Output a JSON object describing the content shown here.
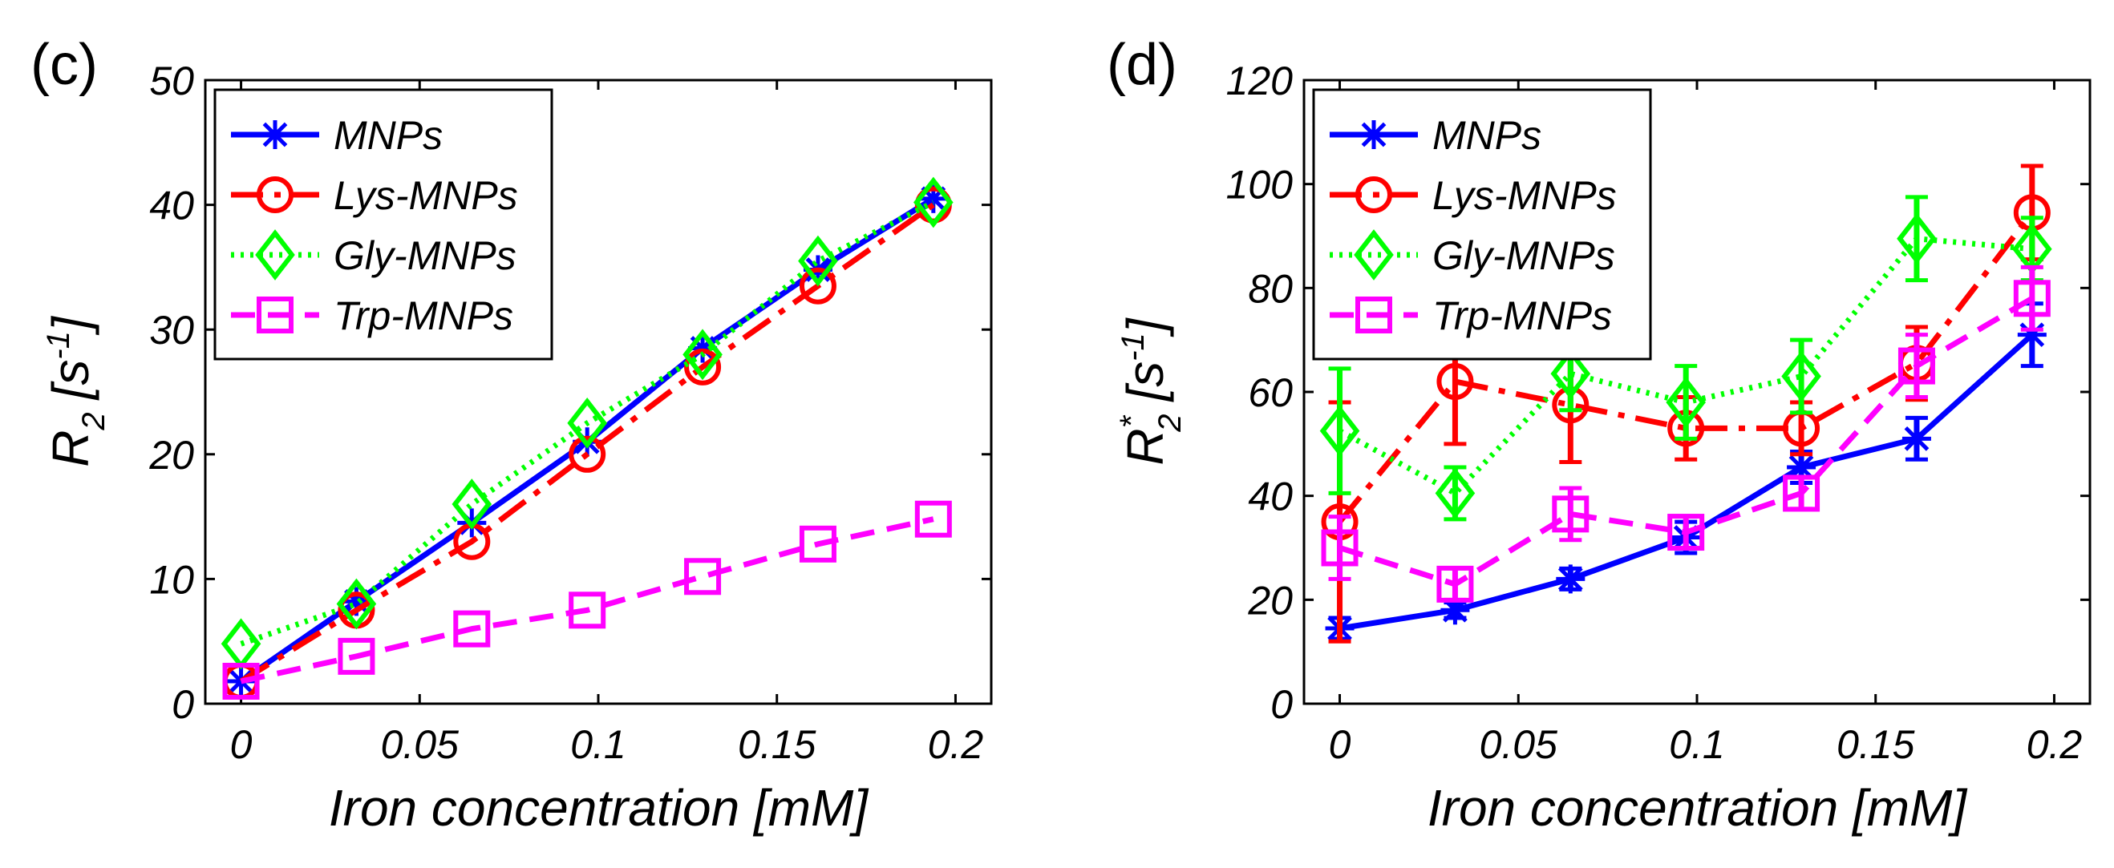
{
  "chart_data": [
    {
      "type": "line",
      "panel_label": "(c)",
      "title": "",
      "xlabel": "Iron concentration [mM]",
      "ylabel_main": "R",
      "ylabel_sub": "2",
      "ylabel_unit": "[s",
      "ylabel_exp": "-1",
      "ylabel_close": "]",
      "xlim": [
        -0.01,
        0.21
      ],
      "ylim": [
        0,
        50
      ],
      "x_ticks": [
        0,
        0.05,
        0.1,
        0.15,
        0.2
      ],
      "x_tick_labels": [
        "0",
        "0.05",
        "0.1",
        "0.15",
        "0.2"
      ],
      "y_ticks": [
        0,
        10,
        20,
        30,
        40,
        50
      ],
      "y_tick_labels": [
        "0",
        "10",
        "20",
        "30",
        "40",
        "50"
      ],
      "legend_position": "top-left",
      "x": [
        0,
        0.0323,
        0.0646,
        0.0969,
        0.1292,
        0.1615,
        0.1938
      ],
      "series": [
        {
          "name": "MNPs",
          "color": "#0000ff",
          "dash": "",
          "marker": "asterisk",
          "values": [
            1.8,
            8.2,
            14.5,
            21.0,
            28.5,
            34.8,
            40.5
          ],
          "errors": [
            0,
            0,
            0,
            0,
            0,
            0,
            0
          ]
        },
        {
          "name": "Lys-MNPs",
          "color": "#ff0000",
          "dash": "40 14 8 14",
          "marker": "circle",
          "values": [
            1.8,
            7.5,
            13.0,
            20.0,
            27.0,
            33.5,
            40.0
          ],
          "errors": [
            0,
            0,
            0,
            0,
            0,
            0,
            0
          ]
        },
        {
          "name": "Gly-MNPs",
          "color": "#00ff00",
          "dash": "4 8",
          "marker": "diamond",
          "values": [
            4.8,
            8.0,
            16.0,
            22.5,
            28.0,
            35.5,
            40.2
          ],
          "errors": [
            0,
            0,
            0,
            0,
            0,
            0,
            0
          ]
        },
        {
          "name": "Trp-MNPs",
          "color": "#ff00ff",
          "dash": "30 16",
          "marker": "square",
          "values": [
            1.8,
            3.8,
            6.0,
            7.5,
            10.2,
            12.8,
            14.8
          ],
          "errors": [
            0,
            0,
            0,
            0,
            0,
            0,
            0
          ]
        }
      ]
    },
    {
      "type": "line",
      "panel_label": "(d)",
      "title": "",
      "xlabel": "Iron concentration [mM]",
      "ylabel_main": "R",
      "ylabel_sub": "2",
      "ylabel_sup": "*",
      "ylabel_unit": "[s",
      "ylabel_exp": "-1",
      "ylabel_close": "]",
      "xlim": [
        -0.01,
        0.21
      ],
      "ylim": [
        0,
        120
      ],
      "x_ticks": [
        0,
        0.05,
        0.1,
        0.15,
        0.2
      ],
      "x_tick_labels": [
        "0",
        "0.05",
        "0.1",
        "0.15",
        "0.2"
      ],
      "y_ticks": [
        0,
        20,
        40,
        60,
        80,
        100,
        120
      ],
      "y_tick_labels": [
        "0",
        "20",
        "40",
        "60",
        "80",
        "100",
        "120"
      ],
      "legend_position": "top-left",
      "x": [
        0,
        0.0323,
        0.0646,
        0.0969,
        0.1292,
        0.1615,
        0.1938
      ],
      "series": [
        {
          "name": "MNPs",
          "color": "#0000ff",
          "dash": "",
          "marker": "asterisk",
          "values": [
            14.5,
            18.0,
            24.0,
            32.0,
            45.5,
            51.0,
            71.0
          ],
          "errors": [
            2,
            1.5,
            2,
            3,
            3,
            4,
            6
          ]
        },
        {
          "name": "Lys-MNPs",
          "color": "#ff0000",
          "dash": "40 14 8 14",
          "marker": "circle",
          "values": [
            35.0,
            62.0,
            57.5,
            53.0,
            53.0,
            65.5,
            94.5
          ],
          "errors": [
            23,
            12,
            11,
            6,
            5,
            7,
            9
          ]
        },
        {
          "name": "Gly-MNPs",
          "color": "#00ff00",
          "dash": "4 8",
          "marker": "diamond",
          "values": [
            52.5,
            40.5,
            63.5,
            58.0,
            63.0,
            89.5,
            87.5
          ],
          "errors": [
            12,
            5,
            7,
            7,
            7,
            8,
            6
          ]
        },
        {
          "name": "Trp-MNPs",
          "color": "#ff00ff",
          "dash": "30 16",
          "marker": "square",
          "values": [
            30.0,
            23.0,
            36.5,
            33.0,
            40.5,
            65.0,
            78.0
          ],
          "errors": [
            6,
            3,
            5,
            3,
            3,
            6,
            6
          ]
        }
      ]
    }
  ]
}
